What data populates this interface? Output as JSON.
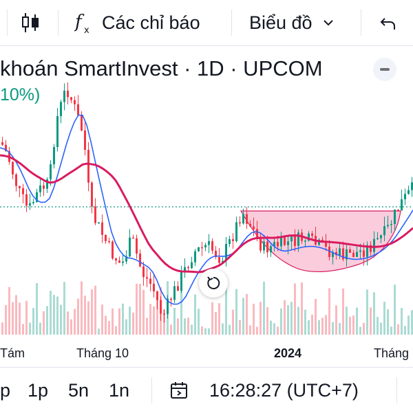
{
  "toolbar": {
    "indicators_label": "Các chỉ báo",
    "chart_type_label": "Biểu đồ",
    "indicators_icon": "fx-icon",
    "candles_icon": "candles-icon",
    "undo_icon": "undo-icon"
  },
  "legend": {
    "title": "khoán SmartInvest · 1D · UPCOM",
    "change": "10%)"
  },
  "x_axis": {
    "labels": [
      "Tám",
      "Tháng 10",
      "2024",
      "Tháng"
    ]
  },
  "bottom_bar": {
    "timeframes": [
      "p",
      "1p",
      "5n",
      "1n"
    ],
    "clock": "16:28:27 (UTC+7)"
  },
  "colors": {
    "up": "#089981",
    "down": "#f23645",
    "ma_fast": "#2962ff",
    "ma_slow": "#d81b60",
    "pattern_fill": "#f8bbd0"
  }
}
